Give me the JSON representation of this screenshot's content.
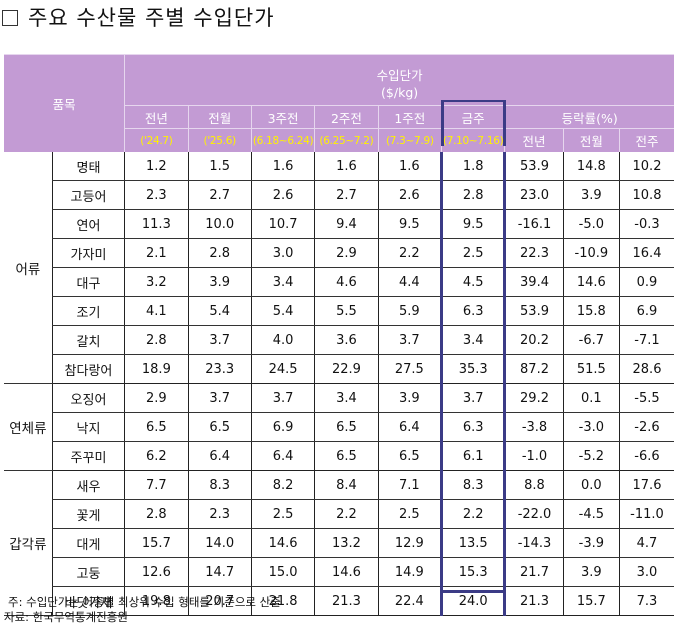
{
  "title": "주요 수산물 주별 수입단가",
  "header": {
    "item_col": "품목",
    "unit_label_1": "수입단가",
    "unit_label_2": "($/kg)",
    "periods": [
      {
        "label": "전년",
        "range": "('24.7)"
      },
      {
        "label": "전월",
        "range": "('25.6)"
      },
      {
        "label": "3주전",
        "range": "(6.18~6.24)"
      },
      {
        "label": "2주전",
        "range": "(6.25~7.2)"
      },
      {
        "label": "1주전",
        "range": "(7.3~7.9)"
      },
      {
        "label": "금주",
        "range": "(7.10~7.16)"
      }
    ],
    "change_label": "등락률(%)",
    "change_cols": [
      "전년",
      "전월",
      "전주"
    ]
  },
  "groups": [
    {
      "category": "어류",
      "rows": [
        {
          "item": "명태",
          "values": [
            "1.2",
            "1.5",
            "1.6",
            "1.6",
            "1.6",
            "1.8"
          ],
          "changes": [
            "53.9",
            "14.8",
            "10.2"
          ]
        },
        {
          "item": "고등어",
          "values": [
            "2.3",
            "2.7",
            "2.6",
            "2.7",
            "2.6",
            "2.8"
          ],
          "changes": [
            "23.0",
            "3.9",
            "10.8"
          ]
        },
        {
          "item": "연어",
          "values": [
            "11.3",
            "10.0",
            "10.7",
            "9.4",
            "9.5",
            "9.5"
          ],
          "changes": [
            "-16.1",
            "-5.0",
            "-0.3"
          ]
        },
        {
          "item": "가자미",
          "values": [
            "2.1",
            "2.8",
            "3.0",
            "2.9",
            "2.2",
            "2.5"
          ],
          "changes": [
            "22.3",
            "-10.9",
            "16.4"
          ]
        },
        {
          "item": "대구",
          "values": [
            "3.2",
            "3.9",
            "3.4",
            "4.6",
            "4.4",
            "4.5"
          ],
          "changes": [
            "39.4",
            "14.6",
            "0.9"
          ]
        },
        {
          "item": "조기",
          "values": [
            "4.1",
            "5.4",
            "5.4",
            "5.5",
            "5.9",
            "6.3"
          ],
          "changes": [
            "53.9",
            "15.8",
            "6.9"
          ]
        },
        {
          "item": "갈치",
          "values": [
            "2.8",
            "3.7",
            "4.0",
            "3.6",
            "3.7",
            "3.4"
          ],
          "changes": [
            "20.2",
            "-6.7",
            "-7.1"
          ]
        },
        {
          "item": "참다랑어",
          "values": [
            "18.9",
            "23.3",
            "24.5",
            "22.9",
            "27.5",
            "35.3"
          ],
          "changes": [
            "87.2",
            "51.5",
            "28.6"
          ]
        }
      ]
    },
    {
      "category": "연체류",
      "rows": [
        {
          "item": "오징어",
          "values": [
            "2.9",
            "3.7",
            "3.7",
            "3.4",
            "3.9",
            "3.7"
          ],
          "changes": [
            "29.2",
            "0.1",
            "-5.5"
          ]
        },
        {
          "item": "낙지",
          "values": [
            "6.5",
            "6.5",
            "6.9",
            "6.5",
            "6.4",
            "6.3"
          ],
          "changes": [
            "-3.8",
            "-3.0",
            "-2.6"
          ]
        },
        {
          "item": "주꾸미",
          "values": [
            "6.2",
            "6.4",
            "6.4",
            "6.5",
            "6.5",
            "6.1"
          ],
          "changes": [
            "-1.0",
            "-5.2",
            "-6.6"
          ]
        }
      ]
    },
    {
      "category": "갑각류",
      "rows": [
        {
          "item": "새우",
          "values": [
            "7.7",
            "8.3",
            "8.2",
            "8.4",
            "7.1",
            "8.3"
          ],
          "changes": [
            "8.8",
            "0.0",
            "17.6"
          ]
        },
        {
          "item": "꽃게",
          "values": [
            "2.8",
            "2.3",
            "2.5",
            "2.2",
            "2.5",
            "2.2"
          ],
          "changes": [
            "-22.0",
            "-4.5",
            "-11.0"
          ]
        },
        {
          "item": "대게",
          "values": [
            "15.7",
            "14.0",
            "14.6",
            "13.2",
            "12.9",
            "13.5"
          ],
          "changes": [
            "-14.3",
            "-3.9",
            "4.7"
          ]
        },
        {
          "item": "고둥",
          "values": [
            "12.6",
            "14.7",
            "15.0",
            "14.6",
            "14.9",
            "15.3"
          ],
          "changes": [
            "21.7",
            "3.9",
            "3.0"
          ]
        },
        {
          "item": "바닷가재",
          "values": [
            "19.8",
            "20.7",
            "21.8",
            "21.3",
            "22.4",
            "24.0"
          ],
          "changes": [
            "21.3",
            "15.7",
            "7.3"
          ]
        }
      ]
    }
  ],
  "notes": {
    "note": "주: 수입단가는 어종별 최상위 수입 형태를 기준으로 산출",
    "source": "자료: 한국무역통계진흥원"
  },
  "colors": {
    "header_bg": "#c39bd4",
    "header_text": "#ffffff",
    "date_text": "#fff200",
    "highlight_border": "#3b3b86"
  }
}
